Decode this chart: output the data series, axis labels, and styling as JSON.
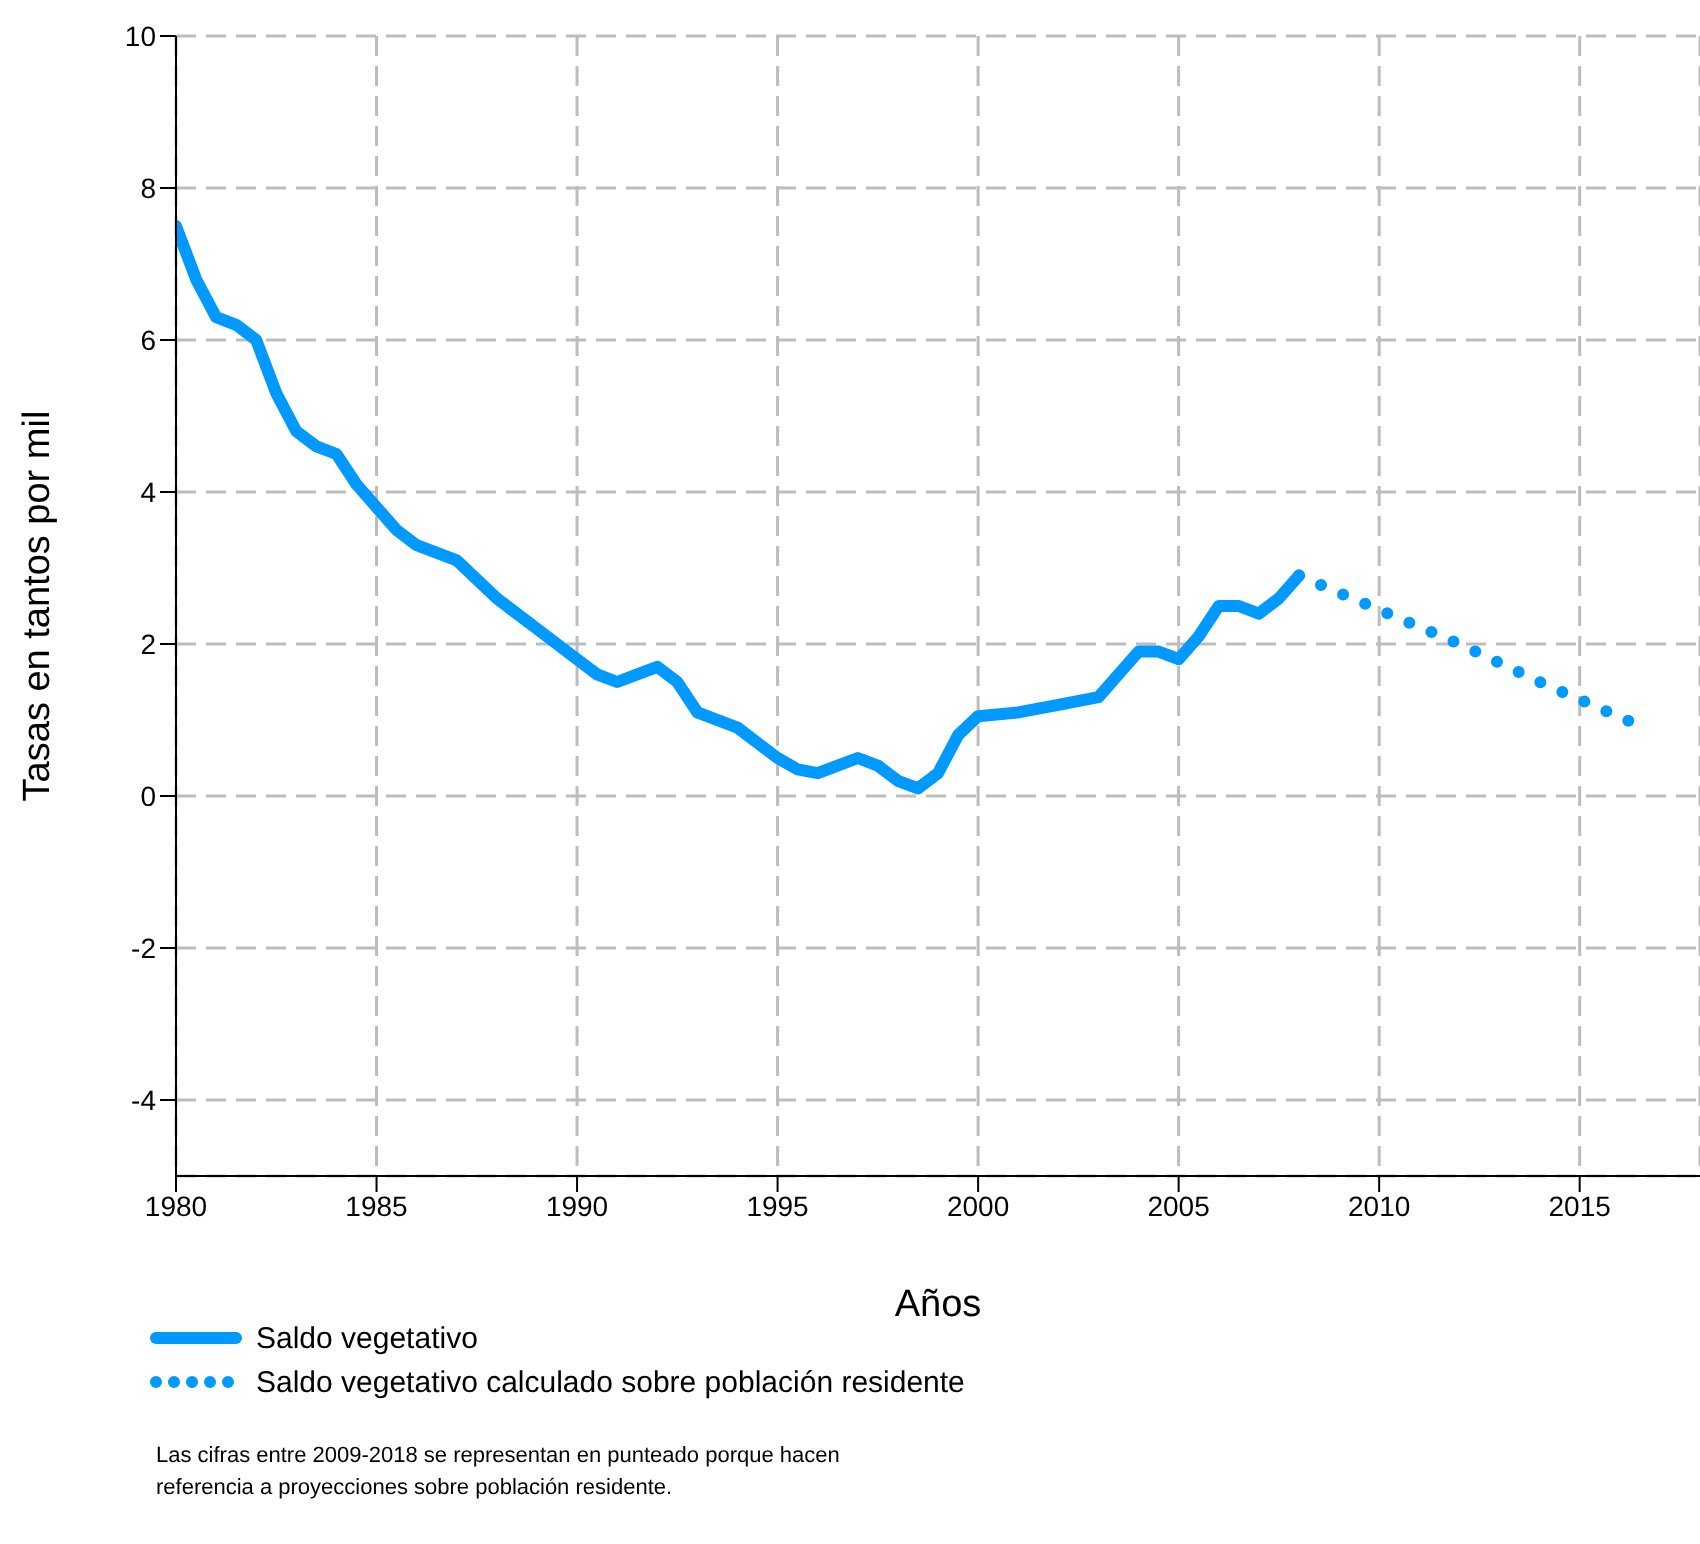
{
  "chart_data": {
    "type": "line",
    "xlabel": "Años",
    "ylabel": "Tasas en tantos por mil",
    "xlim": [
      1980,
      2018
    ],
    "xticks": [
      1980,
      1985,
      1990,
      1995,
      2000,
      2005,
      2010,
      2015
    ],
    "ylim": [
      -5,
      10
    ],
    "yticks": [
      -4,
      -2,
      0,
      2,
      4,
      6,
      8,
      10
    ],
    "grid": true,
    "legend": "bottom",
    "series": [
      {
        "name": "Saldo vegetativo",
        "color": "#0099ff",
        "line_style": "solid",
        "x": [
          1980,
          1980.5,
          1981,
          1981.5,
          1982,
          1982.5,
          1983,
          1983.5,
          1984,
          1984.5,
          1985,
          1985.5,
          1986,
          1987,
          1988,
          1989,
          1990,
          1990.5,
          1991,
          1991.5,
          1992,
          1992.5,
          1993,
          1994,
          1995,
          1995.5,
          1996,
          1996.5,
          1997,
          1997.5,
          1998,
          1998.5,
          1999,
          1999.5,
          2000,
          2001,
          2002,
          2003,
          2003.5,
          2004,
          2004.5,
          2005,
          2005.5,
          2006,
          2006.5,
          2007,
          2007.5,
          2008
        ],
        "values": [
          7.5,
          6.8,
          6.3,
          6.2,
          6.0,
          5.3,
          4.8,
          4.6,
          4.5,
          4.1,
          3.8,
          3.5,
          3.3,
          3.1,
          2.6,
          2.2,
          1.8,
          1.6,
          1.5,
          1.6,
          1.7,
          1.5,
          1.1,
          0.9,
          0.5,
          0.35,
          0.3,
          0.4,
          0.5,
          0.4,
          0.2,
          0.1,
          0.3,
          0.8,
          1.05,
          1.1,
          1.2,
          1.3,
          1.6,
          1.9,
          1.9,
          1.8,
          2.1,
          2.5,
          2.5,
          2.4,
          2.6,
          2.9
        ]
      },
      {
        "name": "Saldo vegetativo calculado sobre población residente",
        "color": "#0099ff",
        "line_style": "dotted",
        "x": [
          2008,
          2010,
          2012,
          2014,
          2016.6
        ],
        "values": [
          2.9,
          2.45,
          2.0,
          1.5,
          0.9
        ]
      }
    ],
    "annotations": [
      "Las cifras entre 2009-2018 se representan en punteado porque hacen referencia a proyecciones sobre población residente."
    ]
  }
}
